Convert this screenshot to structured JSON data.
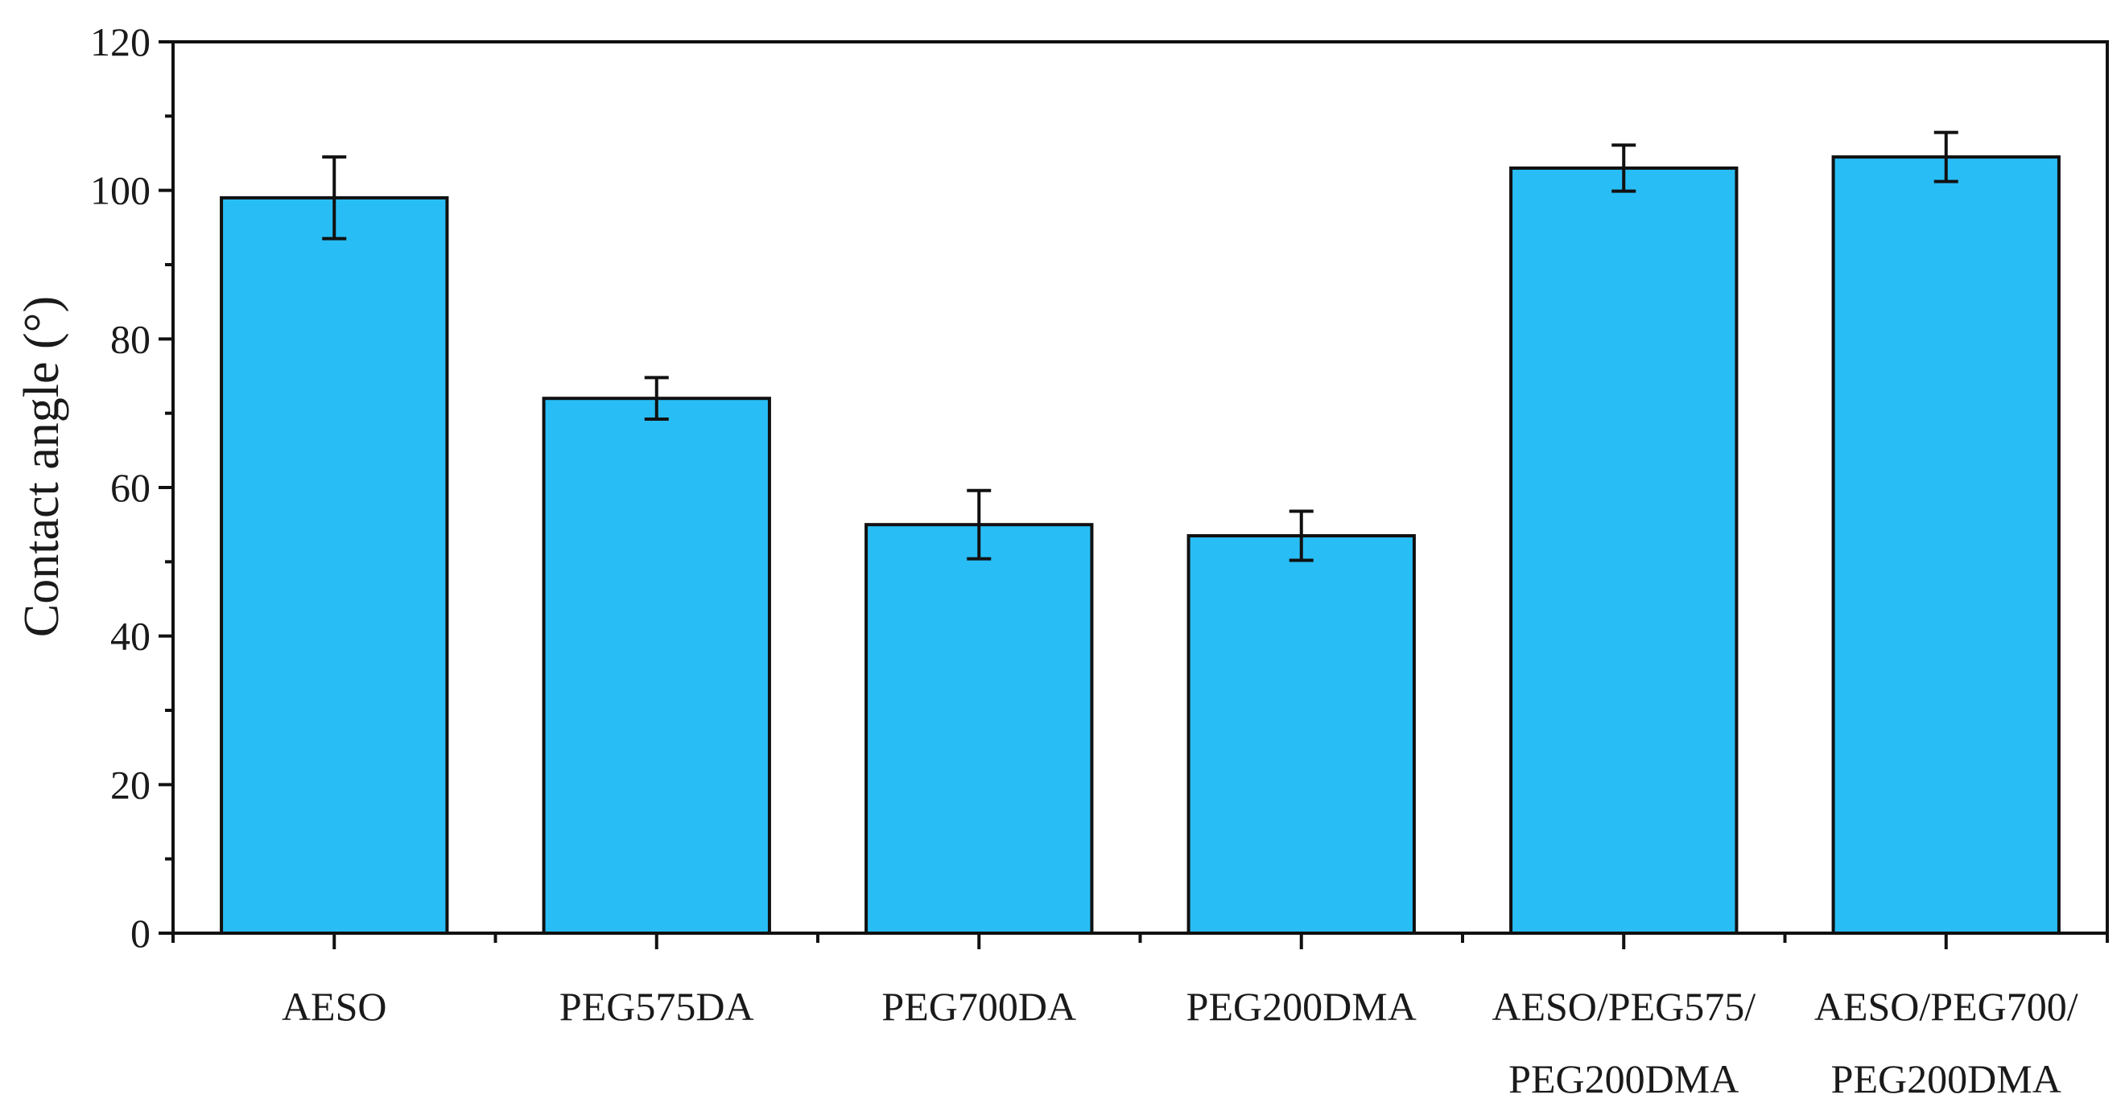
{
  "chart_data": {
    "type": "bar",
    "title": "",
    "xlabel": "",
    "ylabel": "Contact angle (°)",
    "ylim": [
      0,
      120
    ],
    "yticks": [
      "0",
      "20",
      "40",
      "60",
      "80",
      "100",
      "120"
    ],
    "categories": [
      [
        "AESO"
      ],
      [
        "PEG575DA"
      ],
      [
        "PEG700DA"
      ],
      [
        "PEG200DMA"
      ],
      [
        "AESO/PEG575/",
        "PEG200DMA"
      ],
      [
        "AESO/PEG700/",
        "PEG200DMA"
      ]
    ],
    "values": [
      99,
      72,
      55,
      53.5,
      103,
      104.5
    ],
    "errors": [
      5.5,
      2.8,
      4.6,
      3.3,
      3.1,
      3.3
    ],
    "bar_color": "#29BDF5",
    "grid": false
  }
}
